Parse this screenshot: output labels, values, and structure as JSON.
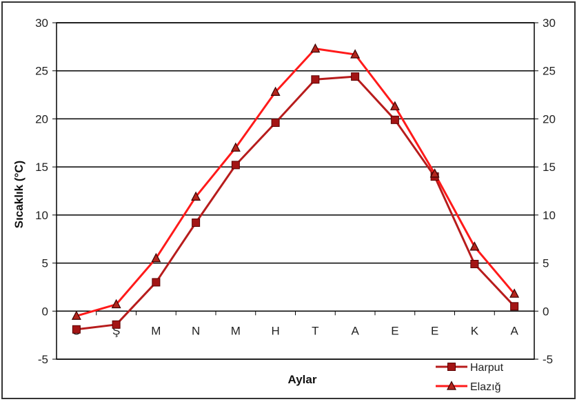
{
  "chart_data": {
    "type": "line",
    "title": "",
    "xlabel": "Aylar",
    "ylabel": "Sıcaklık (°C)",
    "categories": [
      "O",
      "Ş",
      "M",
      "N",
      "M",
      "H",
      "T",
      "A",
      "E",
      "E",
      "K",
      "A"
    ],
    "ylim": [
      -5,
      30
    ],
    "yticks": [
      "30",
      "25",
      "20",
      "15",
      "10",
      "5",
      "0",
      "-5"
    ],
    "yticks_right": [
      "30",
      "25",
      "20",
      "15",
      "10",
      "5",
      "0",
      "-5"
    ],
    "grid": true,
    "legend_position": "bottom-right",
    "series": [
      {
        "name": "Harput",
        "marker": "square",
        "color": "#b71c1c",
        "values": [
          -1.9,
          -1.4,
          3.0,
          9.2,
          15.2,
          19.6,
          24.1,
          24.4,
          19.9,
          14.0,
          4.9,
          0.5
        ]
      },
      {
        "name": "Elazığ",
        "marker": "triangle",
        "color": "#ff1a1a",
        "values": [
          -0.5,
          0.7,
          5.5,
          11.9,
          17.0,
          22.8,
          27.3,
          26.7,
          21.3,
          14.3,
          6.7,
          1.8
        ]
      }
    ]
  }
}
